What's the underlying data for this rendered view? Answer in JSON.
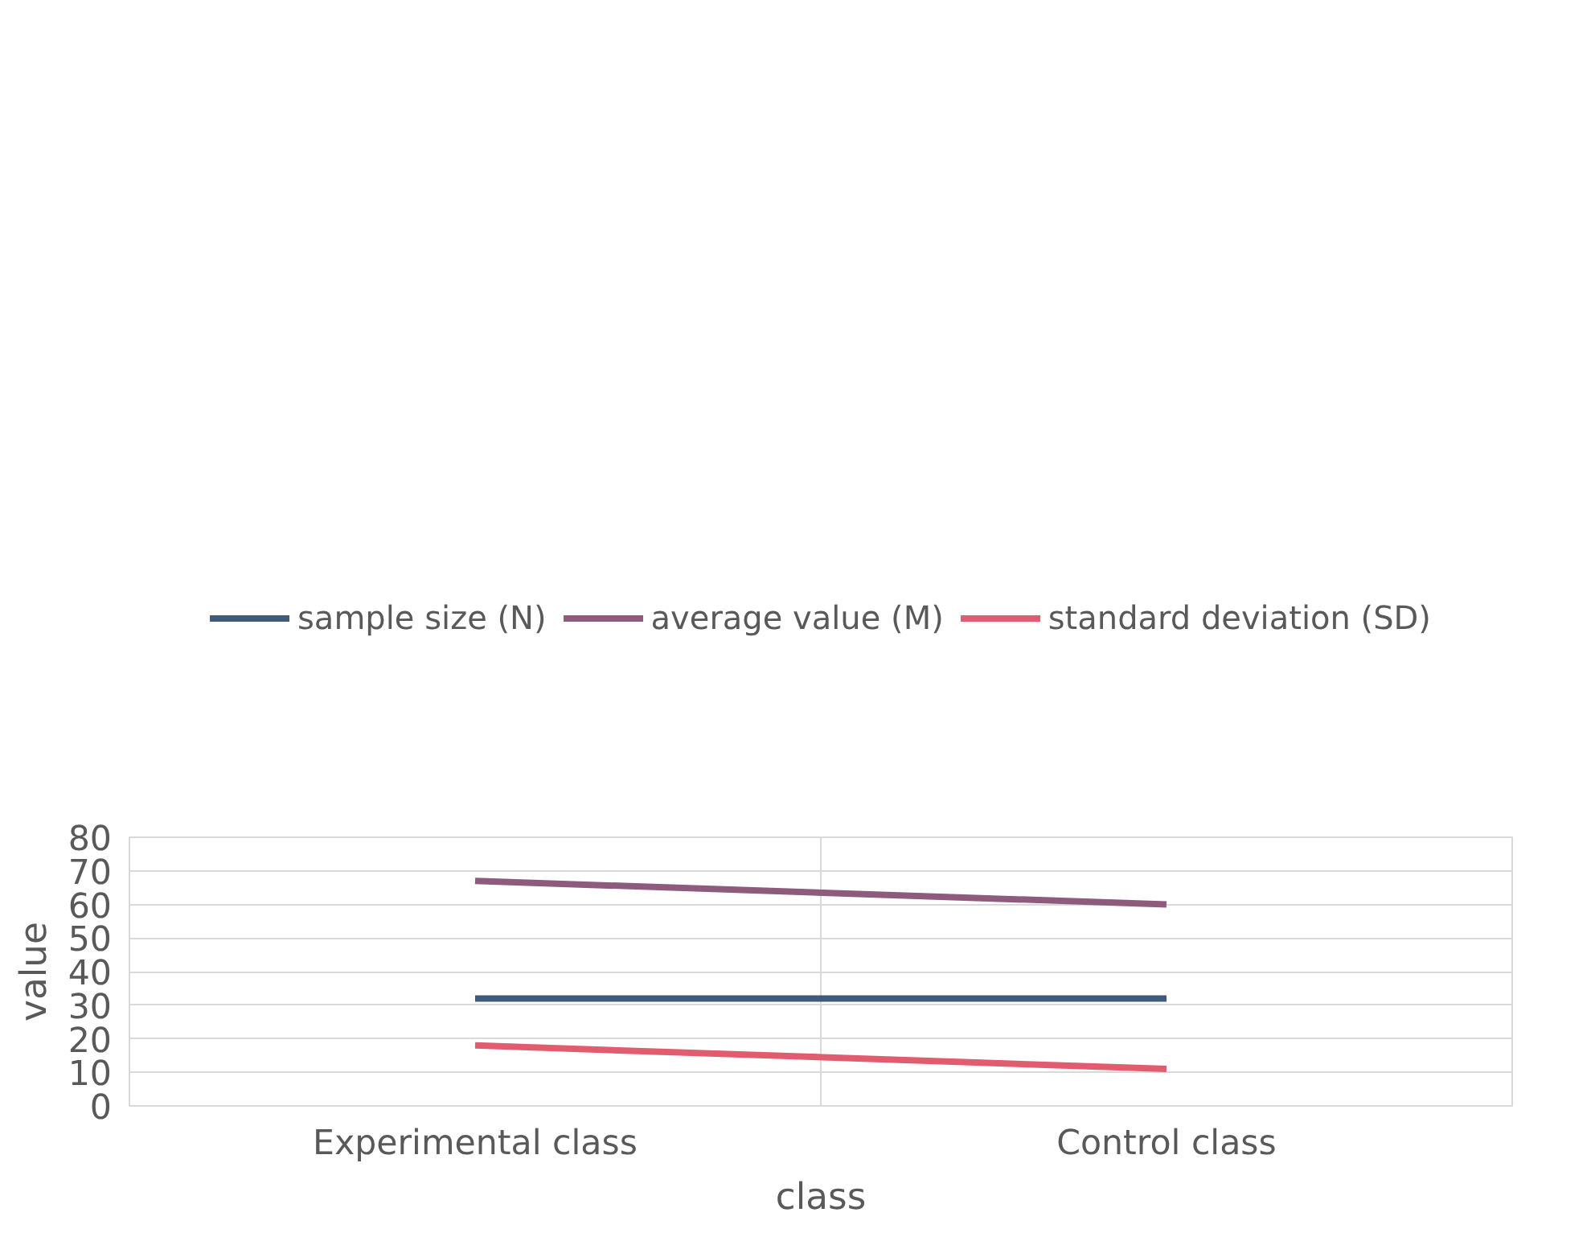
{
  "chart_data": {
    "type": "line",
    "xlabel": "class",
    "ylabel": "value",
    "categories": [
      "Experimental class",
      "Control class"
    ],
    "series": [
      {
        "name": "sample size (N)",
        "color": "#3f5b7c",
        "values": [
          32,
          32
        ]
      },
      {
        "name": "average value (M)",
        "color": "#8e5b7d",
        "values": [
          67,
          60
        ]
      },
      {
        "name": "standard deviation (SD)",
        "color": "#e05c6e",
        "values": [
          18,
          11
        ]
      }
    ],
    "ylim": [
      0,
      80
    ],
    "yticks": [
      0,
      10,
      20,
      30,
      40,
      50,
      60,
      70,
      80
    ],
    "grid": true,
    "legend": "top",
    "marker": "none",
    "line_style": "solid"
  }
}
